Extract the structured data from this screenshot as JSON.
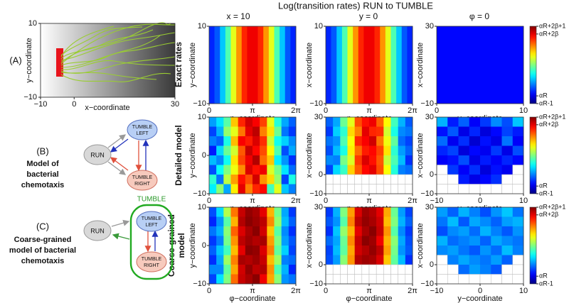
{
  "figure_title": "Log(transition rates) RUN to TUMBLE",
  "column_titles": [
    "x = 10",
    "y = 0",
    "φ = 0"
  ],
  "row_labels": [
    [
      "Exact rates"
    ],
    [
      "Detailed model"
    ],
    [
      "Coarse-grained",
      "model"
    ]
  ],
  "panel_a": {
    "label": "(A)",
    "x_label": "x−coordinate",
    "y_label": "y−coordinate",
    "xlim": [
      -10,
      30
    ],
    "ylim": [
      -10,
      10
    ],
    "xticks": [
      {
        "value": -10,
        "label": "−10"
      },
      0,
      30
    ],
    "yticks": [
      {
        "value": -10,
        "label": "−10"
      },
      10
    ]
  },
  "diagrams": [
    {
      "label": "(B)",
      "caption": [
        "Model of",
        "bacterial",
        "chemotaxis"
      ],
      "run": "RUN",
      "left": [
        "TUMBLE",
        "LEFT"
      ],
      "right": [
        "TUMBLE",
        "RIGHT"
      ]
    },
    {
      "label": "(C)",
      "caption": [
        "Coarse-grained",
        "model of bacterial",
        "chemotaxis"
      ],
      "run": "RUN",
      "group": "TUMBLE",
      "left": [
        "TUMBLE",
        "LEFT"
      ],
      "right": [
        "TUMBLE",
        "RIGHT"
      ]
    }
  ],
  "colorbar": {
    "colormap": "jet",
    "clim": [
      0,
      10
    ],
    "ticks": [
      {
        "value": 0,
        "label": "αR-1"
      },
      {
        "value": 1,
        "label": "αR"
      },
      {
        "value": 9,
        "label": "αR+2β"
      },
      {
        "value": 10,
        "label": "αR+2β+1"
      }
    ]
  },
  "heatmaps": [
    {
      "type": "heatmap",
      "x_label": "φ−coordinate",
      "y_label": "y−coordinate",
      "xlim": [
        0,
        6.28318
      ],
      "ylim": [
        -10,
        10
      ],
      "xticks": [
        0,
        {
          "value": 3.14159,
          "label": "π"
        },
        {
          "value": 6.28318,
          "label": "2π"
        }
      ],
      "yticks": [
        {
          "value": -10,
          "label": "−10"
        },
        10
      ],
      "values": [
        [
          1.6,
          2.1,
          3.2,
          4.5,
          6.0,
          7.3,
          8.4,
          8.9,
          8.9,
          8.4,
          7.3,
          6.0,
          4.5,
          3.2,
          2.1,
          1.6
        ]
      ]
    },
    {
      "type": "heatmap",
      "x_label": "φ−coordinate",
      "y_label": "x−coordinate",
      "xlim": [
        0,
        6.28318
      ],
      "ylim": [
        -10,
        10
      ],
      "xticks": [
        0,
        {
          "value": 3.14159,
          "label": "π"
        },
        {
          "value": 6.28318,
          "label": "2π"
        }
      ],
      "yticks": [
        {
          "value": -10,
          "label": "−10"
        },
        10
      ],
      "values": [
        [
          1.6,
          2.1,
          3.2,
          4.5,
          6.0,
          7.3,
          8.4,
          8.9,
          8.9,
          8.4,
          7.3,
          6.0,
          4.5,
          3.2,
          2.1,
          1.6
        ]
      ]
    },
    {
      "type": "heatmap",
      "x_label": "y−coordinate",
      "y_label": "x−coordinate",
      "xlim": [
        0,
        10
      ],
      "ylim": [
        -10,
        30
      ],
      "xticks": [
        0,
        10
      ],
      "yticks": [
        {
          "value": -10,
          "label": "−10"
        },
        30
      ],
      "values": [
        [
          1.3
        ]
      ]
    },
    {
      "type": "heatmap",
      "x_label": "φ−coordinate",
      "y_label": "y−coordinate",
      "xlim": [
        0,
        6.28318
      ],
      "ylim": [
        -10,
        10
      ],
      "xticks": [
        0,
        {
          "value": 3.14159,
          "label": "π"
        },
        {
          "value": 6.28318,
          "label": "2π"
        }
      ],
      "yticks": [
        {
          "value": -10,
          "label": "−10"
        },
        0,
        10
      ],
      "values": [
        [
          2.8,
          3.5,
          4.6,
          6.8,
          8.4,
          9.2,
          8.8,
          8.1,
          6.0,
          4.1,
          2.9,
          2.2
        ],
        [
          1.9,
          3.0,
          5.2,
          6.0,
          7.6,
          9.0,
          9.4,
          7.5,
          6.5,
          4.8,
          2.4,
          1.8
        ],
        [
          2.5,
          2.2,
          4.0,
          6.9,
          8.8,
          8.5,
          9.1,
          8.3,
          5.7,
          3.9,
          3.3,
          2.6
        ],
        [
          1.5,
          3.4,
          4.8,
          5.8,
          7.9,
          9.3,
          8.7,
          8.0,
          6.3,
          4.5,
          2.0,
          2.9
        ],
        [
          3.1,
          2.6,
          3.9,
          6.5,
          8.1,
          8.9,
          9.5,
          7.7,
          6.8,
          3.6,
          2.7,
          1.7
        ],
        [
          2.0,
          3.8,
          5.0,
          6.1,
          7.4,
          9.1,
          8.6,
          8.9,
          5.9,
          4.9,
          3.5,
          2.3
        ],
        [
          4.2,
          2.4,
          5.6,
          7.2,
          8.6,
          8.0,
          9.2,
          7.3,
          6.6,
          5.2,
          1.9,
          4.0
        ],
        [
          3.6,
          5.1,
          2.9,
          6.4,
          9.0,
          7.5,
          8.4,
          8.7,
          4.4,
          6.0,
          3.2,
          2.5
        ]
      ]
    },
    {
      "type": "heatmap",
      "x_label": "φ−coordinate",
      "y_label": "x−coordinate",
      "xlim": [
        0,
        6.28318
      ],
      "ylim": [
        -10,
        30
      ],
      "xticks": [
        0,
        {
          "value": 3.14159,
          "label": "π"
        },
        {
          "value": 6.28318,
          "label": "2π"
        }
      ],
      "yticks": [
        {
          "value": -10,
          "label": "−10"
        },
        0,
        30
      ],
      "values": [
        [
          2.2,
          2.9,
          4.8,
          6.0,
          8.0,
          8.6,
          8.9,
          7.8,
          6.3,
          4.4,
          3.0,
          2.1
        ],
        [
          1.8,
          3.3,
          4.2,
          6.6,
          7.5,
          9.0,
          8.4,
          8.3,
          5.8,
          4.0,
          2.6,
          2.4
        ],
        [
          2.4,
          2.7,
          4.5,
          6.2,
          8.4,
          8.8,
          9.2,
          7.6,
          6.1,
          4.7,
          2.3,
          1.9
        ],
        [
          2.0,
          3.1,
          4.0,
          6.4,
          7.7,
          8.5,
          8.7,
          8.1,
          6.5,
          4.2,
          2.8,
          2.2
        ],
        [
          2.6,
          2.5,
          4.9,
          5.9,
          8.2,
          9.1,
          8.6,
          7.9,
          5.7,
          4.5,
          3.1,
          1.7
        ],
        [
          1.9,
          3.4,
          4.3,
          6.7,
          7.9,
          8.7,
          9.0,
          8.0,
          6.2,
          4.1,
          2.5,
          2.3
        ],
        [
          null,
          null,
          null,
          null,
          null,
          null,
          null,
          null,
          null,
          null,
          null,
          null
        ],
        [
          null,
          null,
          null,
          null,
          null,
          null,
          null,
          null,
          null,
          null,
          null,
          null
        ]
      ]
    },
    {
      "type": "heatmap",
      "x_label": "y−coordinate",
      "y_label": "x−coordinate",
      "xlim": [
        -10,
        10
      ],
      "ylim": [
        -10,
        30
      ],
      "xticks": [
        {
          "value": -10,
          "label": "−10"
        },
        0,
        10
      ],
      "yticks": [
        {
          "value": -10,
          "label": "−10"
        },
        0,
        30
      ],
      "values": [
        [
          3.0,
          1.5,
          2.2,
          1.2,
          1.8,
          2.6,
          2.0,
          3.2
        ],
        [
          1.4,
          2.1,
          1.0,
          1.6,
          0.9,
          1.3,
          1.9,
          1.5
        ],
        [
          2.3,
          1.1,
          1.7,
          0.8,
          1.4,
          1.0,
          2.4,
          1.2
        ],
        [
          1.6,
          1.9,
          0.9,
          1.3,
          1.1,
          1.8,
          1.0,
          2.0
        ],
        [
          1.2,
          1.4,
          2.0,
          1.0,
          1.5,
          1.2,
          1.6,
          1.3
        ],
        [
          null,
          1.8,
          1.2,
          1.7,
          0.9,
          1.4,
          1.1,
          null
        ],
        [
          null,
          null,
          1.5,
          1.0,
          1.3,
          1.7,
          null,
          null
        ],
        [
          null,
          null,
          null,
          null,
          null,
          null,
          null,
          null
        ]
      ]
    },
    {
      "type": "heatmap",
      "x_label": "φ−coordinate",
      "y_label": "y−coordinate",
      "xlim": [
        0,
        6.28318
      ],
      "ylim": [
        -10,
        10
      ],
      "xticks": [
        0,
        {
          "value": 3.14159,
          "label": "π"
        },
        {
          "value": 6.28318,
          "label": "2π"
        }
      ],
      "yticks": [
        {
          "value": -10,
          "label": "−10"
        },
        0,
        10
      ],
      "values": [
        [
          2.0,
          3.4,
          5.5,
          7.6,
          9.3,
          9.8,
          9.6,
          9.0,
          7.0,
          4.9,
          2.9,
          1.8
        ],
        [
          1.6,
          2.7,
          4.6,
          7.0,
          9.5,
          9.9,
          9.7,
          9.4,
          7.4,
          5.2,
          3.1,
          2.2
        ],
        [
          2.4,
          3.0,
          5.1,
          7.8,
          9.1,
          9.6,
          9.9,
          9.2,
          6.8,
          4.6,
          2.6,
          1.7
        ],
        [
          1.8,
          2.5,
          4.9,
          7.3,
          9.4,
          9.7,
          9.5,
          9.6,
          7.2,
          5.0,
          2.8,
          2.1
        ],
        [
          2.2,
          3.2,
          4.4,
          6.9,
          9.0,
          9.9,
          9.8,
          9.1,
          7.5,
          4.7,
          3.3,
          1.9
        ],
        [
          1.7,
          2.9,
          5.3,
          7.5,
          9.6,
          9.5,
          9.7,
          9.3,
          6.9,
          5.3,
          2.5,
          2.3
        ],
        [
          2.6,
          2.6,
          4.7,
          7.1,
          9.2,
          9.8,
          9.4,
          9.5,
          7.3,
          4.5,
          3.0,
          1.6
        ],
        [
          1.9,
          3.5,
          5.0,
          7.7,
          9.3,
          9.6,
          9.9,
          8.9,
          7.1,
          5.1,
          2.7,
          2.4
        ]
      ]
    },
    {
      "type": "heatmap",
      "x_label": "φ−coordinate",
      "y_label": "x−coordinate",
      "xlim": [
        0,
        6.28318
      ],
      "ylim": [
        -10,
        30
      ],
      "xticks": [
        0,
        {
          "value": 3.14159,
          "label": "π"
        },
        {
          "value": 6.28318,
          "label": "2π"
        }
      ],
      "yticks": [
        {
          "value": -10,
          "label": "−10"
        },
        0,
        30
      ],
      "values": [
        [
          1.8,
          3.0,
          5.0,
          7.2,
          9.1,
          9.7,
          9.5,
          9.0,
          7.1,
          4.8,
          2.8,
          1.9
        ],
        [
          2.1,
          2.7,
          4.6,
          7.5,
          9.4,
          9.8,
          9.6,
          9.2,
          6.9,
          5.0,
          3.0,
          2.2
        ],
        [
          1.7,
          3.2,
          5.2,
          7.0,
          9.0,
          9.6,
          9.9,
          9.3,
          7.3,
          4.6,
          2.6,
          1.8
        ],
        [
          2.3,
          2.9,
          4.8,
          7.4,
          9.3,
          9.9,
          9.7,
          8.9,
          7.0,
          5.1,
          2.9,
          2.0
        ],
        [
          1.9,
          3.1,
          4.7,
          7.1,
          9.2,
          9.5,
          9.8,
          9.4,
          7.2,
          4.9,
          2.7,
          2.1
        ],
        [
          2.0,
          2.8,
          5.1,
          7.3,
          9.5,
          9.7,
          9.6,
          9.1,
          6.8,
          4.7,
          3.1,
          1.7
        ],
        [
          null,
          null,
          null,
          null,
          null,
          null,
          null,
          null,
          null,
          null,
          null,
          null
        ],
        [
          null,
          null,
          null,
          null,
          null,
          null,
          null,
          null,
          null,
          null,
          null,
          null
        ]
      ]
    },
    {
      "type": "heatmap",
      "x_label": "y−coordinate",
      "y_label": "x−coordinate",
      "xlim": [
        -10,
        10
      ],
      "ylim": [
        -10,
        30
      ],
      "xticks": [
        {
          "value": -10,
          "label": "−10"
        },
        0,
        10
      ],
      "yticks": [
        {
          "value": -10,
          "label": "−10"
        },
        0,
        30
      ],
      "values": [
        [
          2.8,
          2.2,
          3.0,
          2.5,
          2.0,
          2.7,
          3.2,
          2.4
        ],
        [
          2.4,
          3.1,
          2.1,
          2.9,
          2.6,
          2.2,
          2.8,
          3.0
        ],
        [
          2.0,
          2.6,
          2.8,
          2.3,
          3.0,
          2.5,
          2.1,
          2.7
        ],
        [
          3.0,
          2.3,
          2.5,
          2.7,
          2.2,
          2.9,
          2.6,
          2.4
        ],
        [
          2.6,
          2.8,
          2.4,
          2.1,
          2.7,
          2.3,
          3.1,
          2.5
        ],
        [
          null,
          2.5,
          2.9,
          2.6,
          2.4,
          2.8,
          2.2,
          null
        ],
        [
          null,
          null,
          2.3,
          2.8,
          2.5,
          2.1,
          null,
          null
        ],
        [
          null,
          null,
          null,
          null,
          null,
          null,
          null,
          null
        ]
      ]
    }
  ]
}
